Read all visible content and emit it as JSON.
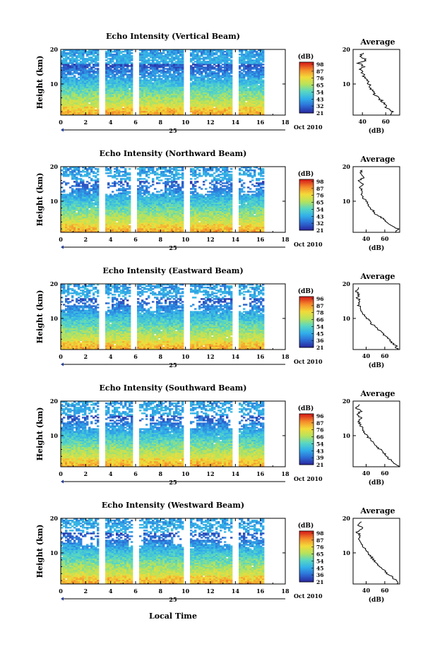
{
  "figure": {
    "xlabel": "Local Time",
    "date_label": "Oct 2010",
    "day_label": "25",
    "colorbar_unit": "(dB)",
    "colorbar_ticks": [
      [
        "98",
        "87",
        "76",
        "65",
        "54",
        "43",
        "32",
        "21"
      ],
      [
        "98",
        "87",
        "76",
        "65",
        "54",
        "43",
        "32",
        "21"
      ],
      [
        "96",
        "87",
        "78",
        "66",
        "54",
        "45",
        "36",
        "21"
      ],
      [
        "96",
        "87",
        "76",
        "66",
        "54",
        "43",
        "39",
        "21"
      ],
      [
        "98",
        "87",
        "76",
        "65",
        "54",
        "45",
        "36",
        "21"
      ]
    ],
    "colorbar_colors": [
      "#2a2aa0",
      "#2c6fd6",
      "#32b0ea",
      "#57d7c3",
      "#b6e35c",
      "#f2dc3a",
      "#f5902c",
      "#d8251b"
    ],
    "average_title": "Average",
    "average_xlabel": "(dB)"
  },
  "chart_data": [
    {
      "type": "heatmap",
      "title": "Echo Intensity (Vertical Beam)",
      "xlabel": "",
      "ylabel": "Height (km)",
      "xlim": [
        0,
        18
      ],
      "ylim": [
        1,
        20
      ],
      "x_ticks": [
        "0",
        "2",
        "4",
        "6",
        "8",
        "10",
        "12",
        "14",
        "16",
        "18"
      ],
      "y_ticks": [
        "10",
        "20"
      ],
      "data_gaps": [
        [
          3.0,
          3.5
        ],
        [
          5.7,
          6.2
        ],
        [
          9.8,
          10.3
        ],
        [
          13.8,
          14.3
        ]
      ],
      "data_end": 16.3,
      "profile": {
        "title": "Average",
        "xlim": [
          32,
          72
        ],
        "x_ticks": [
          "40",
          "60"
        ],
        "y_ticks": [
          "10",
          "20"
        ],
        "heights": [
          1,
          2,
          3,
          4,
          5,
          6,
          7,
          8,
          9,
          10,
          11,
          12,
          13,
          14,
          15,
          16,
          17,
          18,
          19
        ],
        "values": [
          64,
          66,
          61,
          59,
          57,
          54,
          50,
          49,
          47,
          46,
          44,
          42,
          40,
          38,
          41,
          37,
          43,
          38,
          41
        ]
      }
    },
    {
      "type": "heatmap",
      "title": "Echo Intensity (Northward Beam)",
      "xlabel": "",
      "ylabel": "Height (km)",
      "xlim": [
        0,
        18
      ],
      "ylim": [
        1,
        20
      ],
      "x_ticks": [
        "0",
        "2",
        "4",
        "6",
        "8",
        "10",
        "12",
        "14",
        "16",
        "18"
      ],
      "y_ticks": [
        "10",
        "20"
      ],
      "data_gaps": [
        [
          3.0,
          3.5
        ],
        [
          5.6,
          6.1
        ],
        [
          9.8,
          10.3
        ],
        [
          13.8,
          14.3
        ]
      ],
      "data_end": 16.3,
      "profile": {
        "title": "Average",
        "xlim": [
          26,
          76
        ],
        "x_ticks": [
          "40",
          "60"
        ],
        "y_ticks": [
          "10",
          "20"
        ],
        "heights": [
          1,
          2,
          3,
          4,
          5,
          6,
          7,
          8,
          9,
          10,
          11,
          12,
          13,
          14,
          15,
          16,
          17,
          18,
          19
        ],
        "values": [
          72,
          74,
          68,
          62,
          58,
          52,
          48,
          45,
          42,
          40,
          37,
          35,
          36,
          33,
          36,
          32,
          38,
          33,
          36
        ]
      }
    },
    {
      "type": "heatmap",
      "title": "Echo Intensity (Eastward Beam)",
      "xlabel": "",
      "ylabel": "Height (km)",
      "xlim": [
        0,
        18
      ],
      "ylim": [
        1,
        20
      ],
      "x_ticks": [
        "0",
        "2",
        "4",
        "6",
        "8",
        "10",
        "12",
        "14",
        "16",
        "18"
      ],
      "y_ticks": [
        "10",
        "20"
      ],
      "data_gaps": [
        [
          3.0,
          3.5
        ],
        [
          5.6,
          6.1
        ],
        [
          9.9,
          10.4
        ],
        [
          13.8,
          14.3
        ]
      ],
      "data_end": 16.3,
      "profile": {
        "title": "Average",
        "xlim": [
          26,
          76
        ],
        "x_ticks": [
          "40",
          "60"
        ],
        "y_ticks": [
          "10",
          "20"
        ],
        "heights": [
          1,
          2,
          3,
          4,
          5,
          6,
          7,
          8,
          9,
          10,
          11,
          12,
          13,
          14,
          15,
          16,
          17,
          18,
          19
        ],
        "values": [
          74,
          72,
          68,
          64,
          60,
          56,
          52,
          48,
          44,
          41,
          38,
          34,
          35,
          31,
          34,
          30,
          33,
          29,
          32
        ]
      }
    },
    {
      "type": "heatmap",
      "title": "Echo Intensity (Southward Beam)",
      "xlabel": "",
      "ylabel": "Height (km)",
      "xlim": [
        0,
        18
      ],
      "ylim": [
        1,
        20
      ],
      "x_ticks": [
        "0",
        "2",
        "4",
        "6",
        "8",
        "10",
        "12",
        "14",
        "16",
        "18"
      ],
      "y_ticks": [
        "10",
        "20"
      ],
      "data_gaps": [
        [
          3.0,
          3.5
        ],
        [
          5.7,
          6.2
        ],
        [
          9.8,
          10.3
        ],
        [
          13.8,
          14.3
        ]
      ],
      "data_end": 16.3,
      "profile": {
        "title": "Average",
        "xlim": [
          26,
          76
        ],
        "x_ticks": [
          "40",
          "60"
        ],
        "y_ticks": [
          "10",
          "20"
        ],
        "heights": [
          1,
          2,
          3,
          4,
          5,
          6,
          7,
          8,
          9,
          10,
          11,
          12,
          13,
          14,
          15,
          16,
          17,
          18,
          19
        ],
        "values": [
          76,
          70,
          66,
          62,
          59,
          55,
          51,
          47,
          44,
          41,
          38,
          36,
          34,
          32,
          35,
          31,
          34,
          30,
          33
        ]
      }
    },
    {
      "type": "heatmap",
      "title": "Echo Intensity (Westward Beam)",
      "xlabel": "",
      "ylabel": "Height (km)",
      "xlim": [
        0,
        18
      ],
      "ylim": [
        1,
        20
      ],
      "x_ticks": [
        "0",
        "2",
        "4",
        "6",
        "8",
        "10",
        "12",
        "14",
        "16",
        "18"
      ],
      "y_ticks": [
        "10",
        "20"
      ],
      "data_gaps": [
        [
          3.0,
          3.5
        ],
        [
          5.7,
          6.2
        ],
        [
          9.8,
          10.3
        ],
        [
          13.8,
          14.3
        ]
      ],
      "data_end": 16.3,
      "profile": {
        "title": "Average",
        "xlim": [
          26,
          76
        ],
        "x_ticks": [
          "40",
          "60"
        ],
        "y_ticks": [
          "10",
          "20"
        ],
        "heights": [
          1,
          2,
          3,
          4,
          5,
          6,
          7,
          8,
          9,
          10,
          11,
          12,
          13,
          14,
          15,
          16,
          17,
          18,
          19
        ],
        "values": [
          74,
          72,
          68,
          63,
          59,
          55,
          51,
          48,
          45,
          42,
          39,
          36,
          34,
          31,
          34,
          30,
          37,
          32,
          35
        ]
      }
    }
  ]
}
